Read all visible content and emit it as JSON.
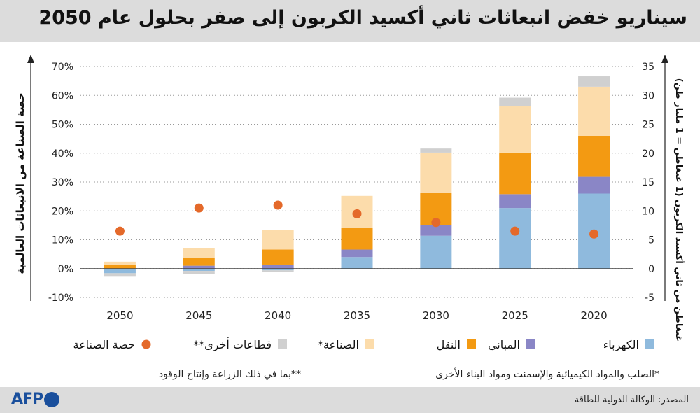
{
  "title": "سيناريو خفض انبعاثات ثاني أكسيد الكربون إلى صفر بحلول عام 2050",
  "footer": {
    "source": "المصدر: الوكالة الدولية للطاقة",
    "logo_text": "AFP"
  },
  "notes": {
    "industry": "*الصلب والمواد الكيميائية والإسمنت ومواد البناء الأخرى",
    "other": "**بما في ذلك الزراعة وإنتاج الوقود"
  },
  "chart_data": {
    "type": "bar",
    "stacked": true,
    "categories": [
      "2050",
      "2045",
      "2040",
      "2035",
      "2030",
      "2025",
      "2020"
    ],
    "ylabel_left": "حصة الصناعة من الانبعاثات العالمية",
    "ylabel_right": "غيغاطن من ثاني أكسيد الكربون (1 غيغاطن = 1 مليار طن)",
    "yticks_left": [
      "70%",
      "60%",
      "50%",
      "40%",
      "30%",
      "20%",
      "10%",
      "0%",
      "-10%"
    ],
    "yticks_right": [
      "35",
      "30",
      "25",
      "20",
      "15",
      "10",
      "5",
      "0",
      "-5"
    ],
    "ylim_left": [
      -10,
      70
    ],
    "ylim_right": [
      -5,
      35
    ],
    "grid": true,
    "series": [
      {
        "name": "الكهرباء",
        "color": "#8fbadd",
        "values": [
          0,
          0,
          0,
          2.0,
          5.7,
          10.5,
          13.0
        ]
      },
      {
        "name": "المباني",
        "color": "#8a86c6",
        "values": [
          0,
          0.5,
          0.7,
          1.3,
          1.8,
          2.4,
          2.9
        ]
      },
      {
        "name": "النقل",
        "color": "#f39a12",
        "values": [
          0.7,
          1.3,
          2.6,
          3.8,
          5.7,
          7.2,
          7.1
        ]
      },
      {
        "name": "الصناعة*",
        "color": "#fcdcab",
        "values": [
          0.5,
          1.7,
          3.4,
          5.5,
          6.9,
          8.0,
          8.5
        ]
      },
      {
        "name": "قطاعات أخرى**",
        "color": "#d0d0d0",
        "values": [
          0,
          0,
          0,
          0,
          0.7,
          1.5,
          1.8
        ]
      }
    ],
    "negative_series": [
      {
        "name": "الكهرباء",
        "color": "#8fbadd",
        "values": [
          -0.8,
          -0.4,
          -0.3,
          0,
          0,
          0,
          0
        ]
      },
      {
        "name": "قطاعات أخرى**",
        "color": "#d0d0d0",
        "values": [
          -0.6,
          -0.6,
          -0.3,
          0,
          0,
          0,
          0
        ]
      }
    ],
    "industry_share": {
      "name": "حصة الصناعة",
      "color": "#e4692a",
      "values": [
        13,
        21,
        22,
        19,
        16,
        13,
        12
      ]
    }
  }
}
